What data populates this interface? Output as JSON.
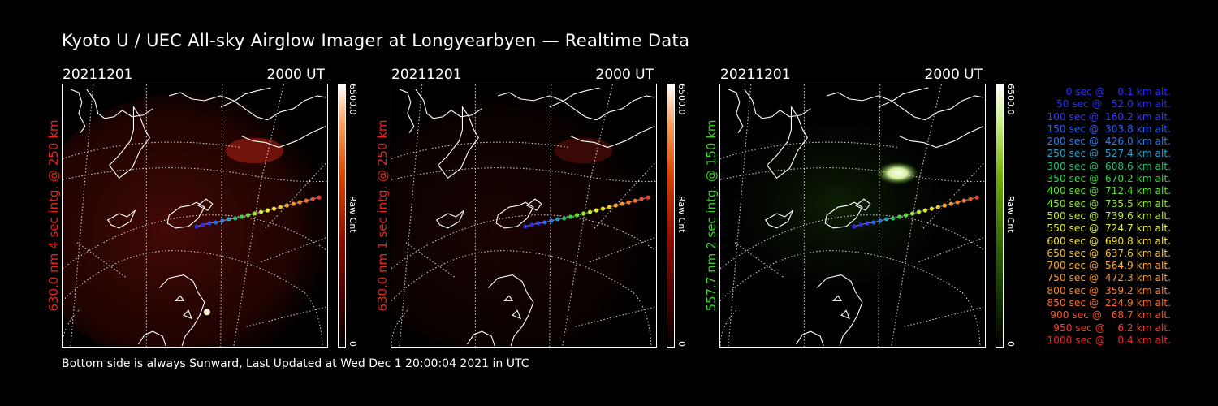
{
  "title": "Kyoto U / UEC All-sky Airglow Imager at Longyearbyen — Realtime Data",
  "footer": "Bottom side is always Sunward, Last Updated at Wed Dec  1 20:00:04 2021 in UTC",
  "panels": [
    {
      "date": "20211201",
      "time": "2000 UT",
      "ylabel": "630.0 nm 4 sec intg. @ 250 km",
      "ylabel_color": "#e8241c",
      "cbar_max": "6500.0",
      "cbar_unit": "Raw Cnt",
      "cbar_min": "0",
      "color": "red"
    },
    {
      "date": "20211201",
      "time": "2000 UT",
      "ylabel": "630.0 nm 1 sec intg. @ 250 km",
      "ylabel_color": "#e8241c",
      "cbar_max": "6500.0",
      "cbar_unit": "Raw Cnt",
      "cbar_min": "0",
      "color": "red"
    },
    {
      "date": "20211201",
      "time": "2000 UT",
      "ylabel": "557.7 nm 2 sec intg. @ 150 km",
      "ylabel_color": "#3fcf2a",
      "cbar_max": "6500.0",
      "cbar_unit": "Raw Cnt",
      "cbar_min": "0",
      "color": "green"
    }
  ],
  "trajectory_legend": [
    {
      "text": "   0 sec @    0.1 km alt.",
      "color": "#2b2bff"
    },
    {
      "text": "  50 sec @   52.0 km alt.",
      "color": "#2b2bff"
    },
    {
      "text": " 100 sec @  160.2 km alt.",
      "color": "#3a3aff"
    },
    {
      "text": " 150 sec @  303.8 km alt.",
      "color": "#2a5cff"
    },
    {
      "text": " 200 sec @  426.0 km alt.",
      "color": "#2b7cf0"
    },
    {
      "text": " 250 sec @  527.4 km alt.",
      "color": "#2aa0c8"
    },
    {
      "text": " 300 sec @  608.6 km alt.",
      "color": "#28c070"
    },
    {
      "text": " 350 sec @  670.2 km alt.",
      "color": "#33d640"
    },
    {
      "text": " 400 sec @  712.4 km alt.",
      "color": "#5fe02a"
    },
    {
      "text": " 450 sec @  735.5 km alt.",
      "color": "#8ee82a"
    },
    {
      "text": " 500 sec @  739.6 km alt.",
      "color": "#b8ee2a"
    },
    {
      "text": " 550 sec @  724.7 km alt.",
      "color": "#e6f02a"
    },
    {
      "text": " 600 sec @  690.8 km alt.",
      "color": "#f5e12a"
    },
    {
      "text": " 650 sec @  637.6 km alt.",
      "color": "#f7c52a"
    },
    {
      "text": " 700 sec @  564.9 km alt.",
      "color": "#f8aa2a"
    },
    {
      "text": " 750 sec @  472.3 km alt.",
      "color": "#f8952a"
    },
    {
      "text": " 800 sec @  359.2 km alt.",
      "color": "#f8802a"
    },
    {
      "text": " 850 sec @  224.9 km alt.",
      "color": "#f8692a"
    },
    {
      "text": " 900 sec @   68.7 km alt.",
      "color": "#f5532a"
    },
    {
      "text": " 950 sec @    6.2 km alt.",
      "color": "#f03f2a"
    },
    {
      "text": "1000 sec @    0.4 km alt.",
      "color": "#ec2a2a"
    }
  ]
}
